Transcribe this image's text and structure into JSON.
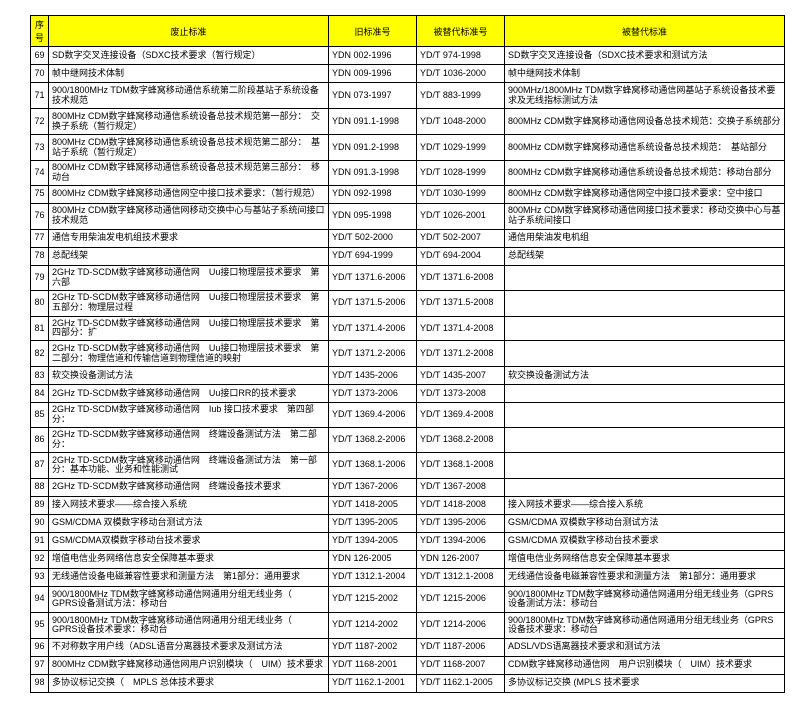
{
  "columns": [
    "序号",
    "废止标准",
    "旧标准号",
    "被替代标准号",
    "被替代标准"
  ],
  "rows": [
    [
      "69",
      "SD数字交叉连接设备（SDXC技术要求（暂行规定）",
      "YDN 002-1996",
      "YD/T 974-1998",
      "SD数字交叉连接设备（SDXC技术要求和测试方法"
    ],
    [
      "70",
      "帧中继网技术体制",
      "YDN 009-1996",
      "YD/T 1036-2000",
      "帧中继网技术体制"
    ],
    [
      "71",
      "900/1800MHz TDM数字蜂窝移动通信系统第二阶段基站子系统设备技术规范",
      "YDN 073-1997",
      "YD/T 883-1999",
      "900MHz/1800MHz TDM数字蜂窝移动通信网基站子系统设备技术要求及无线指标测试方法"
    ],
    [
      "72",
      "800MHz CDM数字蜂窝移动通信系统设备总技术规范第一部分：　交换子系统（暂行规定）",
      "YDN 091.1-1998",
      "YD/T 1048-2000",
      "800MHz CDM数字蜂窝移动通信网设备总技术规范：交换子系统部分"
    ],
    [
      "73",
      "800MHz CDM数字蜂窝移动通信系统设备总技术规范第二部分：　基站子系统（暂行规定）",
      "YDN 091.2-1998",
      "YD/T 1029-1999",
      "800MHz CDM数字蜂窝移动通信系统设备总技术规范：　基站部分"
    ],
    [
      "74",
      "800MHz CDM数字蜂窝移动通信系统设备总技术规范第三部分：　移动台",
      "YDN 091.3-1998",
      "YD/T 1028-1999",
      "800MHz CDM数字蜂窝移动通信系统设备总技术规范：移动台部分"
    ],
    [
      "75",
      "800MHz CDM数字蜂窝移动通信网空中接口技术要求：（暂行规范）",
      "YDN 092-1998",
      "YD/T 1030-1999",
      "800MHz CDM数字蜂窝移动通信网空中接口技术要求：空中接口"
    ],
    [
      "76",
      "800MHz CDM数字蜂窝移动通信网移动交换中心与基站子系统间接口技术规范",
      "YDN 095-1998",
      "YD/T 1026-2001",
      "800MHz CDM数字蜂窝移动通信网接口技术要求：移动交换中心与基站子系统间接口"
    ],
    [
      "77",
      "通信专用柴油发电机组技术要求",
      "YD/T 502-2000",
      "YD/T 502-2007",
      "通信用柴油发电机组"
    ],
    [
      "78",
      "总配线架",
      "YD/T 694-1999",
      "YD/T 694-2004",
      "总配线架"
    ],
    [
      "79",
      "2GHz TD-SCDM数字蜂窝移动通信网　Uu接口物理层技术要求　第六部",
      "YD/T 1371.6-2006",
      "YD/T 1371.6-2008",
      ""
    ],
    [
      "80",
      "2GHz TD-SCDM数字蜂窝移动通信网　Uu接口物理层技术要求　第五部分：物理层过程",
      "YD/T 1371.5-2006",
      "YD/T 1371.5-2008",
      ""
    ],
    [
      "81",
      "2GHz TD-SCDM数字蜂窝移动通信网　Uu接口物理层技术要求　第四部分：扩",
      "YD/T 1371.4-2006",
      "YD/T 1371.4-2008",
      ""
    ],
    [
      "82",
      "2GHz TD-SCDM数字蜂窝移动通信网　Uu接口物理层技术要求　第二部分：物理信道和传输信道到物理信道的映射",
      "YD/T 1371.2-2006",
      "YD/T 1371.2-2008",
      ""
    ],
    [
      "83",
      "软交换设备测试方法",
      "YD/T 1435-2006",
      "YD/T 1435-2007",
      "软交换设备测试方法"
    ],
    [
      "84",
      "2GHz TD-SCDM数字蜂窝移动通信网　Uu接口RR的技术要求",
      "YD/T 1373-2006",
      "YD/T 1373-2008",
      ""
    ],
    [
      "85",
      "2GHz TD-SCDM数字蜂窝移动通信网　Iub 接口技术要求　第四部分：",
      "YD/T 1369.4-2006",
      "YD/T 1369.4-2008",
      ""
    ],
    [
      "86",
      "2GHz TD-SCDM数字蜂窝移动通信网　终端设备测试方法　第二部分：",
      "YD/T 1368.2-2006",
      "YD/T 1368.2-2008",
      ""
    ],
    [
      "87",
      "2GHz TD-SCDM数字蜂窝移动通信网　终端设备测试方法　第一部分：基本功能、业务和性能测试",
      "YD/T 1368.1-2006",
      "YD/T 1368.1-2008",
      ""
    ],
    [
      "88",
      "2GHz TD-SCDM数字蜂窝移动通信网　终端设备技术要求",
      "YD/T 1367-2006",
      "YD/T 1367-2008",
      ""
    ],
    [
      "89",
      "接入网技术要求——综合接入系统",
      "YD/T 1418-2005",
      "YD/T 1418-2008",
      "接入网技术要求——综合接入系统"
    ],
    [
      "90",
      "GSM/CDMA 双模数字移动台测试方法",
      "YD/T 1395-2005",
      "YD/T 1395-2006",
      "GSM/CDMA 双模数字移动台测试方法"
    ],
    [
      "91",
      "GSM/CDMA双模数字移动台技术要求",
      "YD/T 1394-2005",
      "YD/T 1394-2006",
      "GSM/CDMA 双模数字移动台技术要求"
    ],
    [
      "92",
      "增值电信业务网络信息安全保障基本要求",
      "YDN 126-2005",
      "YDN 126-2007",
      "增值电信业务网络信息安全保障基本要求"
    ],
    [
      "93",
      "无线通信设备电磁兼容性要求和测量方法　第1部分：通用要求",
      "YD/T 1312.1-2004",
      "YD/T 1312.1-2008",
      "无线通信设备电磁兼容性要求和测量方法　第1部分：通用要求"
    ],
    [
      "94",
      "900/1800MHz TDM数字蜂窝移动通信网通用分组无线业务（　GPRS设备测试方法：移动台",
      "YD/T 1215-2002",
      "YD/T 1215-2006",
      "900/1800MHz TDM数字蜂窝移动通信网通用分组无线业务（GPRS 设备测试方法：移动台"
    ],
    [
      "95",
      "900/1800MHz TDM数字蜂窝移动通信网通用分组无线业务（　GPRS设备技术要求：移动台",
      "YD/T 1214-2002",
      "YD/T 1214-2006",
      "900/1800MHz TDM数字蜂窝移动通信网通用分组无线业务（GPRS 设备技术要求：移动台"
    ],
    [
      "96",
      "不对称数字用户线（ADSL语音分离器技术要求及测试方法",
      "YD/T 1187-2002",
      "YD/T 1187-2006",
      "ADSL/VDS语离器技术要求和测试方法"
    ],
    [
      "97",
      "800MHz CDM数字蜂窝移动通信网用户识别模块（　UIM）技术要求",
      "YD/T 1168-2001",
      "YD/T 1168-2007",
      "CDM数字蜂窝移动通信网　用户识别模块（　UIM）技术要求"
    ],
    [
      "98",
      "多协议标记交换（　MPLS 总体技术要求",
      "YD/T 1162.1-2001",
      "YD/T 1162.1-2005",
      "多协议标记交换 (MPLS 技术要求"
    ]
  ],
  "tallRows": [
    71,
    72,
    73,
    76,
    80,
    82,
    87,
    94,
    95
  ]
}
